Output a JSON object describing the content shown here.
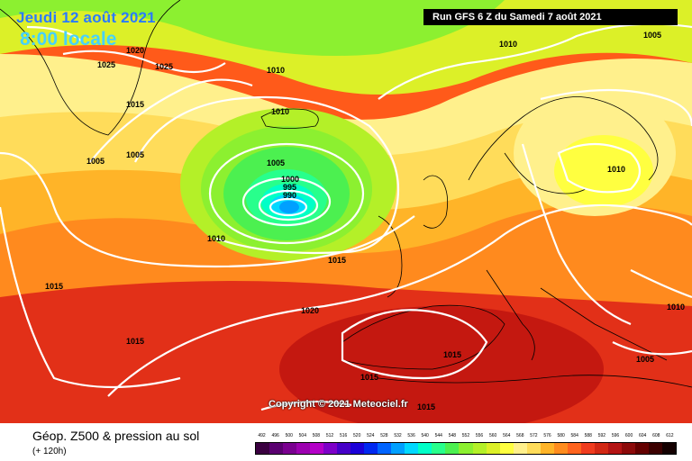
{
  "header": {
    "date": "Jeudi 12 août 2021",
    "time": "8:00 locale",
    "run": "Run GFS 6 Z du Samedi 7 août 2021",
    "copyright": "Copyright © 2021 Meteociel.fr"
  },
  "isobars": [
    "1025",
    "1025",
    "1020",
    "1015",
    "1010",
    "1005",
    "1005",
    "1005",
    "1005",
    "1000",
    "995",
    "990",
    "1010",
    "1015",
    "1020",
    "1015",
    "1015",
    "1015",
    "1015",
    "1010",
    "1005",
    "1010",
    "1010",
    "1010",
    "1015"
  ],
  "footer": {
    "title": "Géop. Z500 & pression au sol",
    "subtitle": "(+ 120h)"
  },
  "legend": {
    "labels": [
      "492",
      "496",
      "500",
      "504",
      "508",
      "512",
      "516",
      "520",
      "524",
      "528",
      "532",
      "536",
      "540",
      "544",
      "548",
      "552",
      "556",
      "560",
      "564",
      "568",
      "572",
      "576",
      "580",
      "584",
      "588",
      "592",
      "596",
      "600",
      "604",
      "608",
      "612"
    ],
    "colors": [
      "#3a0040",
      "#5a0070",
      "#7a0090",
      "#9c00b0",
      "#b400c8",
      "#7d00c8",
      "#4600c8",
      "#1b00d8",
      "#0028f0",
      "#0064ff",
      "#00a0ff",
      "#00d8ff",
      "#00ffc8",
      "#28ff8c",
      "#4cf050",
      "#8cf030",
      "#b4f028",
      "#dcf028",
      "#ffff40",
      "#fff08c",
      "#ffdc5a",
      "#ffb428",
      "#ff8c1e",
      "#ff641e",
      "#f03c1e",
      "#d22814",
      "#b41414",
      "#8c0a0a",
      "#640000",
      "#3c0000",
      "#140000"
    ]
  }
}
